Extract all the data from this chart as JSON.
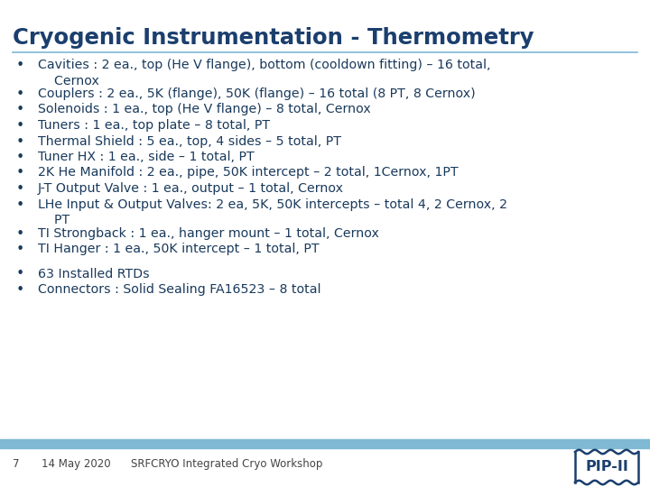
{
  "title": "Cryogenic Instrumentation - Thermometry",
  "title_color": "#1B3F6E",
  "title_fontsize": 17.5,
  "bg_color": "#ffffff",
  "bullet_color": "#1a3a5c",
  "bullet_fontsize": 10.2,
  "bullet_items": [
    [
      "Cavities : 2 ea., top (He V flange), bottom (cooldown fitting) – 16 total,",
      "    Cernox"
    ],
    [
      "Couplers : 2 ea., 5K (flange), 50K (flange) – 16 total (8 PT, 8 Cernox)"
    ],
    [
      "Solenoids : 1 ea., top (He V flange) – 8 total, Cernox"
    ],
    [
      "Tuners : 1 ea., top plate – 8 total, PT"
    ],
    [
      "Thermal Shield : 5 ea., top, 4 sides – 5 total, PT"
    ],
    [
      "Tuner HX : 1 ea., side – 1 total, PT"
    ],
    [
      "2K He Manifold : 2 ea., pipe, 50K intercept – 2 total, 1Cernox, 1PT"
    ],
    [
      "J-T Output Valve : 1 ea., output – 1 total, Cernox"
    ],
    [
      "LHe Input & Output Valves: 2 ea, 5K, 50K intercepts – total 4, 2 Cernox, 2",
      "    PT"
    ],
    [
      "TI Strongback : 1 ea., hanger mount – 1 total, Cernox"
    ],
    [
      "TI Hanger : 1 ea., 50K intercept – 1 total, PT"
    ]
  ],
  "bullet_items2": [
    [
      "63 Installed RTDs"
    ],
    [
      "Connectors : Solid Sealing FA16523 – 8 total"
    ]
  ],
  "footer_page": "7",
  "footer_date": "14 May 2020",
  "footer_event": "SRFCRYO Integrated Cryo Workshop",
  "footer_fontsize": 8.5,
  "footer_color": "#444444",
  "line_color": "#7fb9d4",
  "pip2_color": "#1B3F6E"
}
